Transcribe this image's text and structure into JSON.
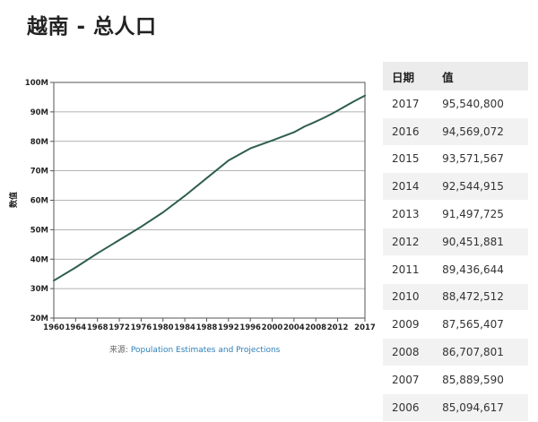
{
  "title": "越南 - 总人口",
  "source": {
    "label": "来源: ",
    "link_text": "Population Estimates and Projections"
  },
  "table": {
    "headers": [
      "日期",
      "值"
    ],
    "rows": [
      [
        "2017",
        "95,540,800"
      ],
      [
        "2016",
        "94,569,072"
      ],
      [
        "2015",
        "93,571,567"
      ],
      [
        "2014",
        "92,544,915"
      ],
      [
        "2013",
        "91,497,725"
      ],
      [
        "2012",
        "90,451,881"
      ],
      [
        "2011",
        "89,436,644"
      ],
      [
        "2010",
        "88,472,512"
      ],
      [
        "2009",
        "87,565,407"
      ],
      [
        "2008",
        "86,707,801"
      ],
      [
        "2007",
        "85,889,590"
      ],
      [
        "2006",
        "85,094,617"
      ]
    ]
  },
  "chart_data": {
    "type": "line",
    "title": "",
    "ylabel": "数值",
    "xlabel": "",
    "xlim": [
      1960,
      2017
    ],
    "ylim": [
      20000000,
      100000000
    ],
    "grid": "horizontal",
    "legend": "none",
    "yticks": [
      20000000,
      30000000,
      40000000,
      50000000,
      60000000,
      70000000,
      80000000,
      90000000,
      100000000
    ],
    "ytick_labels": [
      "20M",
      "30M",
      "40M",
      "50M",
      "60M",
      "70M",
      "80M",
      "90M",
      "100M"
    ],
    "xticks": [
      1960,
      1964,
      1968,
      1972,
      1976,
      1980,
      1984,
      1988,
      1992,
      1996,
      2000,
      2004,
      2008,
      2012,
      2017
    ],
    "xtick_labels": [
      "1960",
      "1964",
      "1968",
      "1972",
      "1976",
      "1980",
      "1984",
      "1988",
      "1992",
      "1996",
      "2000",
      "2004",
      "2008",
      "2012",
      "2017"
    ],
    "series": [
      {
        "color": "#2e5e4e",
        "x": [
          1960,
          1964,
          1968,
          1972,
          1976,
          1980,
          1984,
          1988,
          1992,
          1996,
          2000,
          2004,
          2006,
          2007,
          2008,
          2009,
          2010,
          2011,
          2012,
          2013,
          2014,
          2015,
          2016,
          2017
        ],
        "y": [
          32700000,
          37200000,
          42000000,
          46500000,
          51000000,
          55900000,
          61500000,
          67500000,
          73500000,
          77600000,
          80300000,
          83100000,
          85094617,
          85889590,
          86707801,
          87565407,
          88472512,
          89436644,
          90451881,
          91497725,
          92544915,
          93571567,
          94569072,
          95540800
        ]
      }
    ]
  }
}
